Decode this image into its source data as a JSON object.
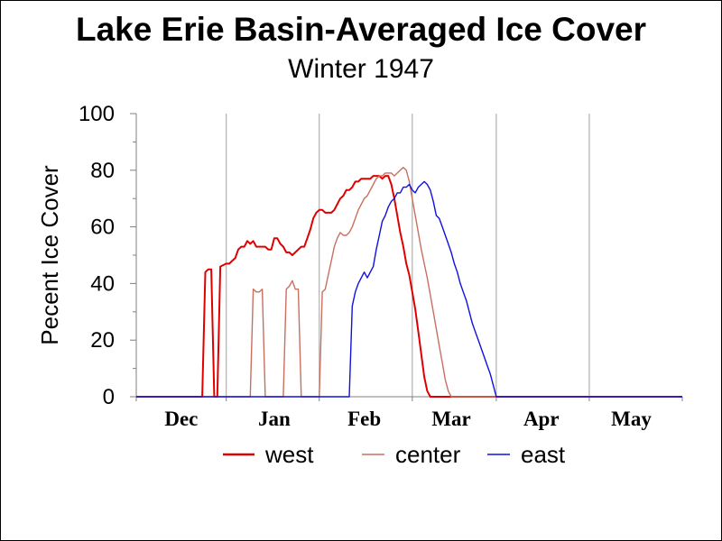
{
  "chart_data": {
    "type": "line",
    "title": "Lake Erie Basin-Averaged Ice Cover",
    "subtitle": "Winter 1947",
    "ylabel": "Pecent Ice Cover",
    "xlabel": "",
    "ylim": [
      0,
      100
    ],
    "xlim": [
      0,
      182
    ],
    "yticks": [
      0,
      20,
      40,
      60,
      80,
      100
    ],
    "month_labels": [
      {
        "label": "Dec",
        "x": 15
      },
      {
        "label": "Jan",
        "x": 46
      },
      {
        "label": "Feb",
        "x": 76
      },
      {
        "label": "Mar",
        "x": 105
      },
      {
        "label": "Apr",
        "x": 135
      },
      {
        "label": "May",
        "x": 165
      }
    ],
    "month_boundaries": [
      30,
      61,
      92,
      120,
      151
    ],
    "legend_position": "bottom",
    "series": [
      {
        "name": "west",
        "color": "#e00000",
        "points": [
          [
            0,
            0
          ],
          [
            22,
            0
          ],
          [
            23,
            44
          ],
          [
            24,
            45
          ],
          [
            25,
            45
          ],
          [
            26,
            0
          ],
          [
            27,
            0
          ],
          [
            28,
            46
          ],
          [
            30,
            47
          ],
          [
            31,
            47
          ],
          [
            33,
            49
          ],
          [
            34,
            52
          ],
          [
            35,
            53
          ],
          [
            36,
            53
          ],
          [
            37,
            55
          ],
          [
            38,
            54
          ],
          [
            39,
            55
          ],
          [
            40,
            53
          ],
          [
            41,
            53
          ],
          [
            42,
            53
          ],
          [
            43,
            53
          ],
          [
            44,
            52
          ],
          [
            45,
            52
          ],
          [
            46,
            56
          ],
          [
            47,
            56
          ],
          [
            48,
            54
          ],
          [
            49,
            53
          ],
          [
            50,
            51
          ],
          [
            51,
            51
          ],
          [
            52,
            50
          ],
          [
            53,
            51
          ],
          [
            54,
            52
          ],
          [
            55,
            53
          ],
          [
            56,
            53
          ],
          [
            57,
            56
          ],
          [
            58,
            59
          ],
          [
            59,
            63
          ],
          [
            60,
            65
          ],
          [
            61,
            66
          ],
          [
            62,
            66
          ],
          [
            63,
            65
          ],
          [
            64,
            65
          ],
          [
            65,
            65
          ],
          [
            66,
            66
          ],
          [
            67,
            68
          ],
          [
            68,
            70
          ],
          [
            69,
            71
          ],
          [
            70,
            73
          ],
          [
            71,
            73
          ],
          [
            72,
            74
          ],
          [
            73,
            76
          ],
          [
            74,
            76
          ],
          [
            75,
            77
          ],
          [
            76,
            77
          ],
          [
            77,
            77
          ],
          [
            78,
            77
          ],
          [
            79,
            78
          ],
          [
            80,
            78
          ],
          [
            81,
            78
          ],
          [
            82,
            77
          ],
          [
            83,
            78
          ],
          [
            84,
            78
          ],
          [
            85,
            75
          ],
          [
            86,
            70
          ],
          [
            87,
            64
          ],
          [
            88,
            58
          ],
          [
            89,
            53
          ],
          [
            90,
            47
          ],
          [
            91,
            43
          ],
          [
            92,
            37
          ],
          [
            93,
            31
          ],
          [
            94,
            23
          ],
          [
            95,
            15
          ],
          [
            96,
            7
          ],
          [
            97,
            2
          ],
          [
            98,
            0
          ],
          [
            99,
            0
          ],
          [
            182,
            0
          ]
        ]
      },
      {
        "name": "center",
        "color": "#c87060",
        "points": [
          [
            0,
            0
          ],
          [
            38,
            0
          ],
          [
            39,
            38
          ],
          [
            40,
            37
          ],
          [
            41,
            37
          ],
          [
            42,
            38
          ],
          [
            43,
            0
          ],
          [
            49,
            0
          ],
          [
            50,
            38
          ],
          [
            51,
            39
          ],
          [
            52,
            41
          ],
          [
            53,
            38
          ],
          [
            54,
            38
          ],
          [
            55,
            0
          ],
          [
            61,
            0
          ],
          [
            62,
            37
          ],
          [
            63,
            38
          ],
          [
            64,
            43
          ],
          [
            65,
            48
          ],
          [
            66,
            53
          ],
          [
            67,
            56
          ],
          [
            68,
            58
          ],
          [
            69,
            57
          ],
          [
            70,
            57
          ],
          [
            71,
            58
          ],
          [
            72,
            60
          ],
          [
            73,
            63
          ],
          [
            74,
            66
          ],
          [
            75,
            68
          ],
          [
            76,
            70
          ],
          [
            77,
            71
          ],
          [
            78,
            73
          ],
          [
            79,
            75
          ],
          [
            80,
            77
          ],
          [
            81,
            78
          ],
          [
            82,
            78
          ],
          [
            83,
            79
          ],
          [
            84,
            79
          ],
          [
            85,
            79
          ],
          [
            86,
            78
          ],
          [
            87,
            79
          ],
          [
            88,
            80
          ],
          [
            89,
            81
          ],
          [
            90,
            80
          ],
          [
            91,
            76
          ],
          [
            92,
            70
          ],
          [
            93,
            64
          ],
          [
            94,
            58
          ],
          [
            95,
            52
          ],
          [
            96,
            47
          ],
          [
            97,
            42
          ],
          [
            98,
            36
          ],
          [
            99,
            30
          ],
          [
            100,
            24
          ],
          [
            101,
            18
          ],
          [
            102,
            12
          ],
          [
            103,
            6
          ],
          [
            104,
            2
          ],
          [
            105,
            0
          ],
          [
            182,
            0
          ]
        ]
      },
      {
        "name": "east",
        "color": "#1010e0",
        "points": [
          [
            0,
            0
          ],
          [
            71,
            0
          ],
          [
            72,
            32
          ],
          [
            73,
            37
          ],
          [
            74,
            40
          ],
          [
            75,
            42
          ],
          [
            76,
            44
          ],
          [
            77,
            42
          ],
          [
            78,
            44
          ],
          [
            79,
            46
          ],
          [
            80,
            52
          ],
          [
            81,
            57
          ],
          [
            82,
            62
          ],
          [
            83,
            64
          ],
          [
            84,
            67
          ],
          [
            85,
            69
          ],
          [
            86,
            70
          ],
          [
            87,
            72
          ],
          [
            88,
            72
          ],
          [
            89,
            74
          ],
          [
            90,
            74
          ],
          [
            91,
            75
          ],
          [
            92,
            73
          ],
          [
            93,
            72
          ],
          [
            94,
            74
          ],
          [
            95,
            75
          ],
          [
            96,
            76
          ],
          [
            97,
            75
          ],
          [
            98,
            73
          ],
          [
            99,
            69
          ],
          [
            100,
            64
          ],
          [
            101,
            63
          ],
          [
            102,
            60
          ],
          [
            103,
            57
          ],
          [
            104,
            54
          ],
          [
            105,
            51
          ],
          [
            106,
            47
          ],
          [
            107,
            44
          ],
          [
            108,
            40
          ],
          [
            109,
            37
          ],
          [
            110,
            34
          ],
          [
            111,
            30
          ],
          [
            112,
            26
          ],
          [
            113,
            23
          ],
          [
            114,
            20
          ],
          [
            115,
            17
          ],
          [
            116,
            14
          ],
          [
            117,
            11
          ],
          [
            118,
            8
          ],
          [
            119,
            4
          ],
          [
            120,
            0
          ],
          [
            121,
            0
          ],
          [
            182,
            0
          ]
        ]
      }
    ]
  }
}
